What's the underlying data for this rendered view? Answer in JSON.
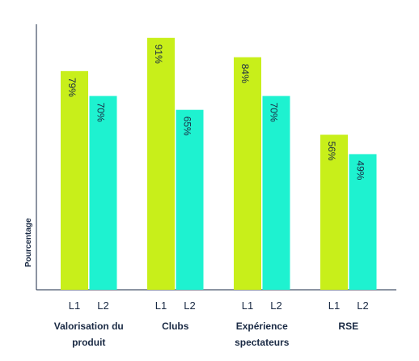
{
  "chart_data": {
    "type": "bar",
    "y_label": "Pourcentage",
    "categories": [
      "Valorisation du produit",
      "Clubs",
      "Expérience spectateurs",
      "RSE"
    ],
    "series": [
      {
        "name": "L1",
        "color": "#c8ef1a",
        "values": [
          79,
          91,
          84,
          56
        ],
        "value_labels": [
          "79%",
          "91%",
          "84%",
          "56%"
        ]
      },
      {
        "name": "L2",
        "color": "#1ef2d0",
        "values": [
          70,
          65,
          70,
          49
        ],
        "value_labels": [
          "70%",
          "65%",
          "70%",
          "49%"
        ]
      }
    ],
    "ylim": [
      0,
      100
    ]
  }
}
